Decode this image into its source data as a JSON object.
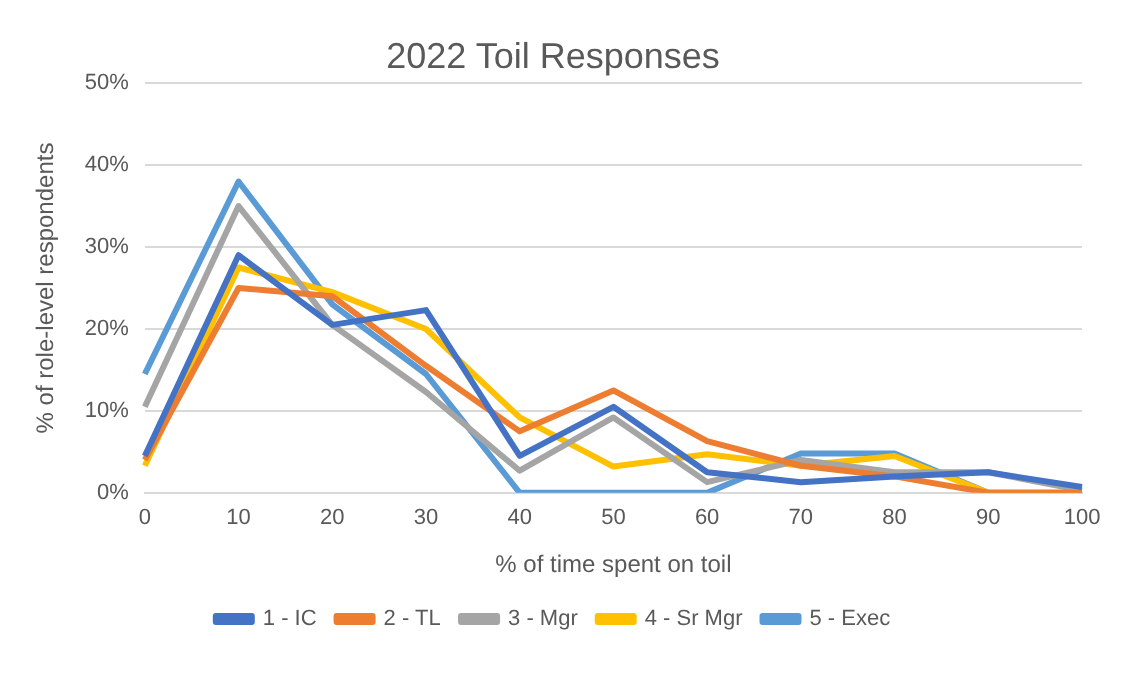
{
  "chart_data": {
    "type": "line",
    "title": "2022 Toil Responses",
    "xlabel": "% of time spent on toil",
    "ylabel": "% of role-level respondents",
    "categories": [
      "0",
      "10",
      "20",
      "30",
      "40",
      "50",
      "60",
      "70",
      "80",
      "90",
      "100"
    ],
    "series": [
      {
        "name": "1 - IC",
        "color": "#4472c4",
        "values": [
          4.5,
          29,
          20.5,
          22.3,
          4.5,
          10.5,
          2.5,
          1.3,
          2,
          2.5,
          0.7
        ]
      },
      {
        "name": "2 - TL",
        "color": "#ed7d31",
        "values": [
          4,
          25,
          24,
          15.5,
          7.5,
          12.5,
          6.3,
          3.3,
          2,
          0,
          0
        ]
      },
      {
        "name": "3 - Mgr",
        "color": "#a5a5a5",
        "values": [
          10.5,
          35,
          20.5,
          12.3,
          2.7,
          9.2,
          1.3,
          4,
          2.5,
          2.5,
          0.3
        ]
      },
      {
        "name": "4 - Sr Mgr",
        "color": "#ffc000",
        "values": [
          3.3,
          27.5,
          24.5,
          20,
          9.2,
          3.2,
          4.7,
          3.3,
          4.5,
          0,
          0
        ]
      },
      {
        "name": "5 - Exec",
        "color": "#5b9bd5",
        "values": [
          14.5,
          38,
          23,
          14.5,
          0,
          0,
          0,
          4.8,
          4.8,
          0,
          0
        ]
      }
    ],
    "ylim": [
      0,
      50
    ],
    "yticks": [
      {
        "value": 0,
        "label": "0%"
      },
      {
        "value": 10,
        "label": "10%"
      },
      {
        "value": 20,
        "label": "20%"
      },
      {
        "value": 30,
        "label": "30%"
      },
      {
        "value": 40,
        "label": "40%"
      },
      {
        "value": 50,
        "label": "50%"
      }
    ],
    "grid": "y",
    "legend": "bottom",
    "marker": "none",
    "line_style": "solid"
  }
}
